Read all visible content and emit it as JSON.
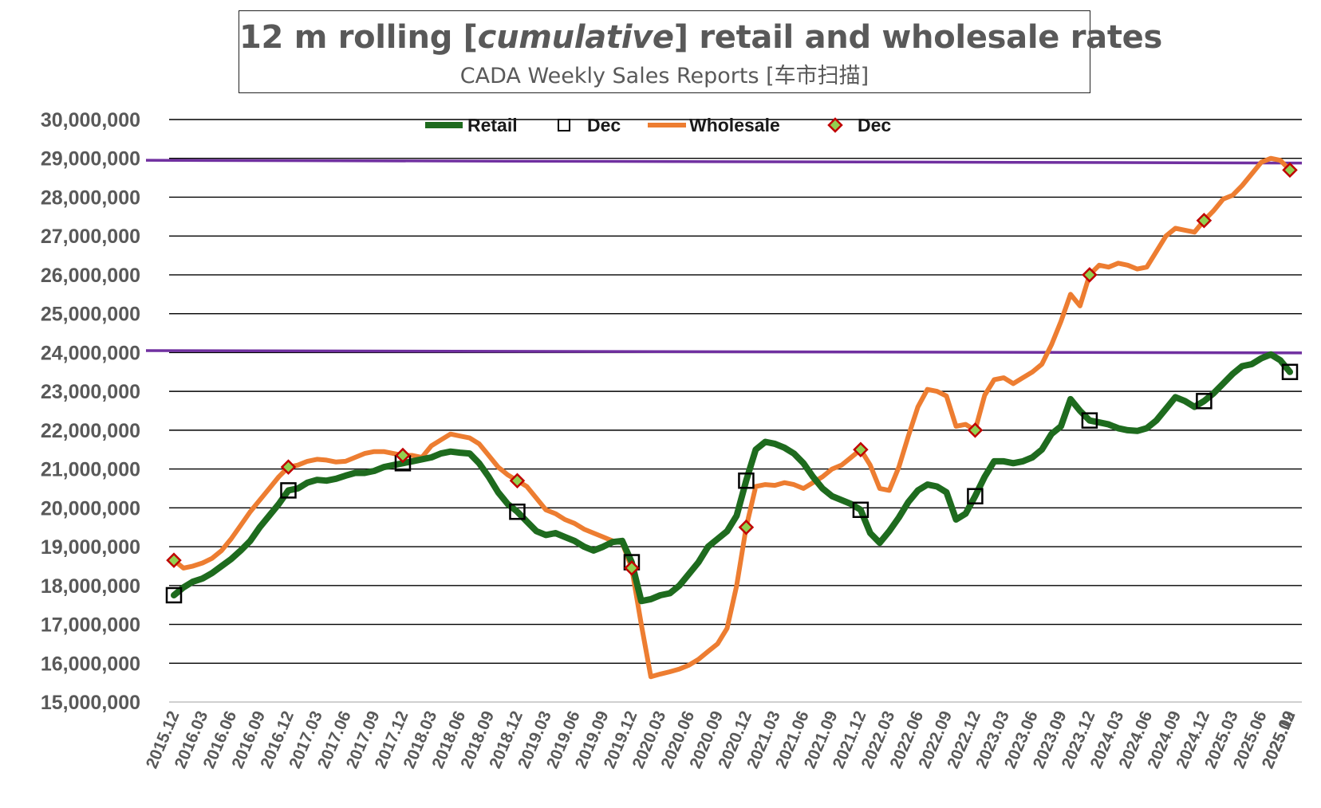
{
  "chart_data": {
    "type": "line",
    "title": "12 m rolling [cumulative] retail and wholesale rates",
    "title_parts": {
      "before": "12 m rolling [",
      "italic": "cumulative",
      "after": "] retail and wholesale rates"
    },
    "subtitle": "CADA Weekly Sales Reports [车市扫描]",
    "xlabel": "",
    "ylabel": "",
    "ylim": [
      15000000,
      30000000
    ],
    "y_ticks": [
      15000000,
      16000000,
      17000000,
      18000000,
      19000000,
      20000000,
      21000000,
      22000000,
      23000000,
      24000000,
      25000000,
      26000000,
      27000000,
      28000000,
      29000000,
      30000000
    ],
    "y_tick_labels": [
      "15,000,000",
      "16,000,000",
      "17,000,000",
      "18,000,000",
      "19,000,000",
      "20,000,000",
      "21,000,000",
      "22,000,000",
      "23,000,000",
      "24,000,000",
      "25,000,000",
      "26,000,000",
      "27,000,000",
      "28,000,000",
      "29,000,000",
      "30,000,000"
    ],
    "x_tick_labels": [
      "2015.12",
      "2016.03",
      "2016.06",
      "2016.09",
      "2016.12",
      "2017.03",
      "2017.06",
      "2017.09",
      "2017.12",
      "2018.03",
      "2018.06",
      "2018.09",
      "2018.12",
      "2019.03",
      "2019.06",
      "2019.09",
      "2019.12",
      "2020.03",
      "2020.06",
      "2020.09",
      "2020.12",
      "2021.03",
      "2021.06",
      "2021.09",
      "2021.12",
      "2022.03",
      "2022.06",
      "2022.09",
      "2022.12",
      "2023.03",
      "2023.06",
      "2023.09",
      "2023.12",
      "2024.03",
      "2024.06",
      "2024.09",
      "2024.12",
      "2025.03",
      "2025.06",
      "2025.09",
      "2025.12"
    ],
    "legend": [
      {
        "label": "Retail",
        "kind": "line",
        "color": "#1e6b1e"
      },
      {
        "label": "Dec",
        "kind": "square",
        "color": "#000000"
      },
      {
        "label": "Wholesale",
        "kind": "line",
        "color": "#ed7d31"
      },
      {
        "label": "Dec",
        "kind": "diamond",
        "color": "#c00000"
      }
    ],
    "legend_position": "top-center",
    "grid": true,
    "series": [
      {
        "name": "Retail",
        "color": "#1e6b1e",
        "values": [
          17750000,
          17950000,
          18100000,
          18180000,
          18320000,
          18500000,
          18680000,
          18900000,
          19150000,
          19500000,
          19800000,
          20100000,
          20450000,
          20500000,
          20650000,
          20720000,
          20700000,
          20750000,
          20830000,
          20900000,
          20900000,
          20950000,
          21050000,
          21100000,
          21150000,
          21200000,
          21250000,
          21300000,
          21400000,
          21450000,
          21420000,
          21400000,
          21150000,
          20800000,
          20400000,
          20100000,
          19900000,
          19650000,
          19400000,
          19300000,
          19350000,
          19250000,
          19150000,
          19000000,
          18900000,
          19000000,
          19120000,
          19150000,
          18600000,
          17600000,
          17650000,
          17750000,
          17800000,
          18000000,
          18300000,
          18600000,
          19000000,
          19200000,
          19400000,
          19800000,
          20700000,
          21500000,
          21700000,
          21650000,
          21550000,
          21400000,
          21150000,
          20800000,
          20500000,
          20300000,
          20200000,
          20100000,
          19950000,
          19350000,
          19100000,
          19400000,
          19750000,
          20150000,
          20450000,
          20600000,
          20550000,
          20400000,
          19700000,
          19850000,
          20300000,
          20800000,
          21200000,
          21200000,
          21150000,
          21200000,
          21300000,
          21500000,
          21900000,
          22100000,
          22800000,
          22500000,
          22250000,
          22200000,
          22150000,
          22050000,
          22000000,
          21980000,
          22050000,
          22250000,
          22550000,
          22850000,
          22750000,
          22600000,
          22750000,
          22950000,
          23200000,
          23450000,
          23650000,
          23700000,
          23850000,
          23950000,
          23800000,
          23500000
        ]
      },
      {
        "name": "Wholesale",
        "color": "#ed7d31",
        "values": [
          18650000,
          18450000,
          18500000,
          18580000,
          18700000,
          18900000,
          19200000,
          19550000,
          19900000,
          20200000,
          20500000,
          20800000,
          21050000,
          21100000,
          21200000,
          21250000,
          21230000,
          21180000,
          21200000,
          21300000,
          21400000,
          21450000,
          21450000,
          21400000,
          21350000,
          21350000,
          21300000,
          21600000,
          21750000,
          21900000,
          21850000,
          21800000,
          21650000,
          21350000,
          21050000,
          20850000,
          20700000,
          20550000,
          20250000,
          19950000,
          19850000,
          19700000,
          19600000,
          19450000,
          19350000,
          19250000,
          19150000,
          19100000,
          18450000,
          17000000,
          15650000,
          15720000,
          15780000,
          15850000,
          15950000,
          16100000,
          16300000,
          16500000,
          16900000,
          18000000,
          19500000,
          20550000,
          20600000,
          20580000,
          20650000,
          20600000,
          20500000,
          20650000,
          20800000,
          21000000,
          21100000,
          21300000,
          21500000,
          21100000,
          20500000,
          20450000,
          21050000,
          21850000,
          22600000,
          23050000,
          23000000,
          22880000,
          22100000,
          22150000,
          22000000,
          22900000,
          23300000,
          23350000,
          23200000,
          23350000,
          23500000,
          23700000,
          24200000,
          24800000,
          25500000,
          25200000,
          26000000,
          26250000,
          26200000,
          26300000,
          26250000,
          26150000,
          26200000,
          26600000,
          27000000,
          27200000,
          27150000,
          27100000,
          27400000,
          27650000,
          27950000,
          28050000,
          28300000,
          28600000,
          28900000,
          29000000,
          28950000,
          28700000
        ]
      }
    ],
    "dec_marker_indices": [
      0,
      12,
      24,
      36,
      48,
      60,
      72,
      84,
      96,
      108,
      117
    ],
    "reference_lines": [
      {
        "y_start": 28950000,
        "y_end": 28880000,
        "color": "#7030a0"
      },
      {
        "y_start": 24050000,
        "y_end": 23990000,
        "color": "#7030a0"
      }
    ]
  }
}
